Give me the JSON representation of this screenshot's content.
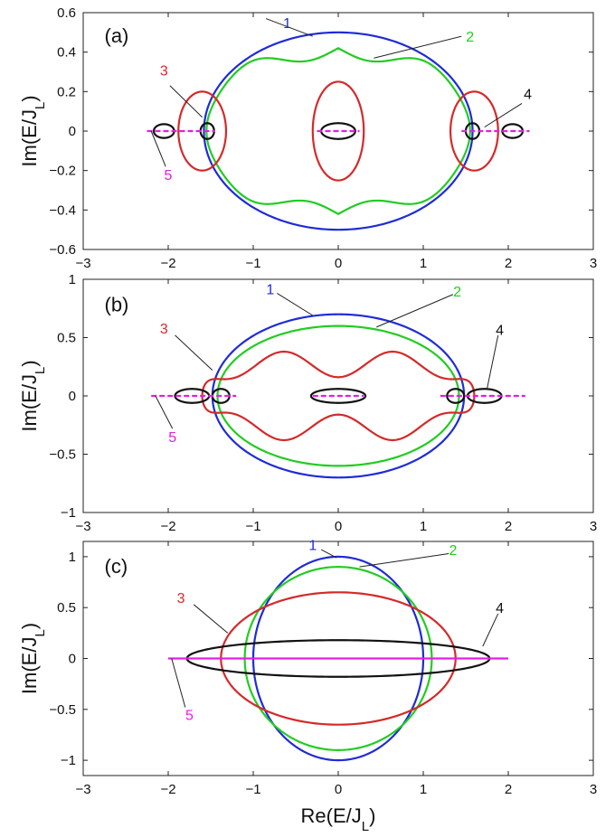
{
  "chart_data": [
    {
      "type": "line",
      "panel": "(a)",
      "xlabel": "",
      "ylabel": "Im(E/J_L)",
      "xlim": [
        -3,
        3
      ],
      "ylim": [
        -0.6,
        0.6
      ],
      "xticks": [
        "-3",
        "-2",
        "-1",
        "0",
        "1",
        "2",
        "3"
      ],
      "yticks": [
        "0.6",
        "0.4",
        "0.2",
        "0",
        "-0.2",
        "-0.4",
        "-0.6"
      ],
      "grid": false,
      "series": [
        {
          "name": "1",
          "color": "#1f2bd6",
          "shape": "ellipse",
          "center": [
            0,
            0
          ],
          "rx": 1.58,
          "ry": 0.5
        },
        {
          "name": "2",
          "color": "#22cc22",
          "shape": "wavy-ellipse",
          "center": [
            0,
            0
          ],
          "rx": 1.55,
          "ry": 0.42
        },
        {
          "name": "3",
          "color": "#d42a2a",
          "shape": "closed-loops",
          "loops": [
            {
              "center": [
                0,
                0
              ],
              "rx": 0.3,
              "ry": 0.25
            },
            {
              "center": [
                -1.6,
                0
              ],
              "rx": 0.28,
              "ry": 0.2
            },
            {
              "center": [
                1.6,
                0
              ],
              "rx": 0.28,
              "ry": 0.2
            }
          ]
        },
        {
          "name": "4",
          "color": "#111111",
          "shape": "closed-loops",
          "loops": [
            {
              "center": [
                0,
                0
              ],
              "rx": 0.2,
              "ry": 0.04
            },
            {
              "center": [
                -1.54,
                0
              ],
              "rx": 0.08,
              "ry": 0.04
            },
            {
              "center": [
                1.58,
                0
              ],
              "rx": 0.08,
              "ry": 0.04
            },
            {
              "center": [
                -2.05,
                0
              ],
              "rx": 0.12,
              "ry": 0.035
            },
            {
              "center": [
                2.05,
                0
              ],
              "rx": 0.12,
              "ry": 0.035
            }
          ]
        },
        {
          "name": "5",
          "color": "#e020e0",
          "shape": "segments-on-real-axis",
          "segments": [
            [
              -2.25,
              -1.45
            ],
            [
              -0.25,
              0.25
            ],
            [
              1.45,
              2.25
            ]
          ]
        }
      ]
    },
    {
      "type": "line",
      "panel": "(b)",
      "xlabel": "",
      "ylabel": "Im(E/J_L)",
      "xlim": [
        -3,
        3
      ],
      "ylim": [
        -1,
        1
      ],
      "xticks": [
        "-3",
        "-2",
        "-1",
        "0",
        "1",
        "2",
        "3"
      ],
      "yticks": [
        "1",
        "0.5",
        "0",
        "-0.5",
        "-1"
      ],
      "grid": false,
      "series": [
        {
          "name": "1",
          "color": "#1f2bd6",
          "shape": "ellipse",
          "center": [
            0,
            0
          ],
          "rx": 1.48,
          "ry": 0.7
        },
        {
          "name": "2",
          "color": "#22cc22",
          "shape": "ellipse",
          "center": [
            0,
            0
          ],
          "rx": 1.42,
          "ry": 0.6
        },
        {
          "name": "3",
          "color": "#d42a2a",
          "shape": "wavy-band",
          "xrange": [
            -1.6,
            1.6
          ],
          "ry": 0.35
        },
        {
          "name": "4",
          "color": "#111111",
          "shape": "closed-loops",
          "loops": [
            {
              "center": [
                0,
                0
              ],
              "rx": 0.32,
              "ry": 0.06
            },
            {
              "center": [
                -1.72,
                0
              ],
              "rx": 0.2,
              "ry": 0.06
            },
            {
              "center": [
                -1.38,
                0
              ],
              "rx": 0.1,
              "ry": 0.06
            },
            {
              "center": [
                1.72,
                0
              ],
              "rx": 0.2,
              "ry": 0.06
            },
            {
              "center": [
                1.38,
                0
              ],
              "rx": 0.1,
              "ry": 0.06
            }
          ]
        },
        {
          "name": "5",
          "color": "#e020e0",
          "shape": "segments-on-real-axis",
          "segments": [
            [
              -2.2,
              -1.2
            ],
            [
              -0.3,
              0.3
            ],
            [
              1.2,
              2.2
            ]
          ]
        }
      ]
    },
    {
      "type": "line",
      "panel": "(c)",
      "xlabel": "Re(E/J_L)",
      "ylabel": "Im(E/J_L)",
      "xlim": [
        -3,
        3
      ],
      "ylim": [
        -1.15,
        1.15
      ],
      "xticks": [
        "-3",
        "-2",
        "-1",
        "0",
        "1",
        "2",
        "3"
      ],
      "yticks": [
        "1",
        "0.5",
        "0",
        "-0.5",
        "-1"
      ],
      "grid": false,
      "series": [
        {
          "name": "1",
          "color": "#1f2bd6",
          "shape": "ellipse",
          "center": [
            0,
            0
          ],
          "rx": 1.0,
          "ry": 1.0
        },
        {
          "name": "2",
          "color": "#22cc22",
          "shape": "ellipse",
          "center": [
            0,
            0
          ],
          "rx": 1.1,
          "ry": 0.9
        },
        {
          "name": "3",
          "color": "#d42a2a",
          "shape": "ellipse",
          "center": [
            0,
            0
          ],
          "rx": 1.38,
          "ry": 0.65
        },
        {
          "name": "4",
          "color": "#111111",
          "shape": "ellipse",
          "center": [
            0,
            0
          ],
          "rx": 1.78,
          "ry": 0.18
        },
        {
          "name": "5",
          "color": "#e020e0",
          "shape": "segments-on-real-axis",
          "segments": [
            [
              -2.0,
              2.0
            ]
          ]
        }
      ]
    }
  ]
}
